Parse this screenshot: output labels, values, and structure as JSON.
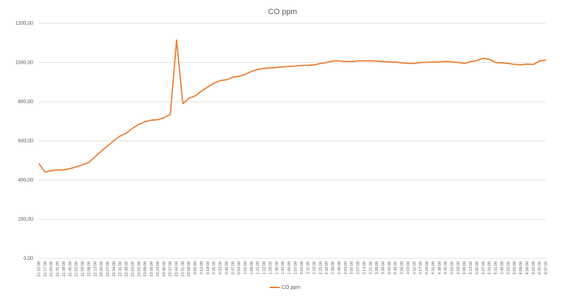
{
  "chart_data": {
    "type": "line",
    "title": "CO ppm",
    "categories": [
      "21:10:00",
      "21:17:00",
      "21:24:00",
      "21:31:00",
      "21:38:00",
      "21:45:00",
      "21:52:00",
      "21:59:00",
      "22:06:00",
      "22:13:00",
      "22:20:00",
      "22:27:00",
      "22:34:00",
      "22:41:00",
      "22:48:00",
      "22:55:00",
      "23:02:00",
      "23:09:00",
      "23:16:00",
      "23:23:00",
      "23:30:00",
      "23:37:00",
      "23:44:00",
      "23:51:00",
      "23:58:00",
      "0:05:00",
      "0:12:00",
      "0:19:00",
      "0:26:00",
      "0:33:00",
      "0:40:00",
      "0:47:00",
      "0:54:00",
      "1:01:00",
      "1:08:00",
      "1:15:00",
      "1:22:00",
      "1:29:00",
      "1:36:00",
      "1:43:00",
      "1:50:00",
      "1:57:00",
      "2:04:00",
      "2:11:00",
      "2:18:00",
      "2:25:00",
      "2:32:00",
      "2:39:00",
      "2:46:00",
      "2:53:00",
      "3:00:00",
      "3:07:00",
      "3:14:00",
      "3:21:00",
      "3:28:00",
      "3:35:00",
      "3:42:00",
      "3:49:00",
      "3:56:00",
      "4:03:00",
      "4:10:00",
      "4:17:00",
      "4:24:00",
      "4:31:00",
      "4:38:00",
      "4:45:00",
      "4:52:00",
      "4:59:00",
      "5:06:00",
      "5:13:00",
      "5:20:00",
      "5:27:00",
      "5:34:00",
      "5:41:00",
      "5:48:00",
      "5:55:00",
      "6:02:00",
      "6:09:00",
      "6:16:00",
      "6:23:00",
      "6:30:00",
      "6:37:00"
    ],
    "series": [
      {
        "name": "CO ppm",
        "color": "#ed7d31",
        "values": [
          485,
          440,
          448,
          452,
          452,
          458,
          468,
          478,
          490,
          520,
          548,
          575,
          602,
          625,
          640,
          665,
          685,
          698,
          706,
          708,
          718,
          735,
          1115,
          790,
          818,
          830,
          855,
          875,
          895,
          908,
          912,
          925,
          930,
          940,
          955,
          965,
          970,
          972,
          975,
          978,
          980,
          982,
          985,
          985,
          988,
          995,
          1000,
          1008,
          1008,
          1005,
          1005,
          1008,
          1008,
          1008,
          1007,
          1005,
          1003,
          1002,
          998,
          996,
          995,
          1000,
          1001,
          1002,
          1003,
          1005,
          1003,
          1000,
          995,
          1005,
          1010,
          1022,
          1015,
          1000,
          998,
          995,
          990,
          988,
          992,
          990,
          1008,
          1012
        ]
      }
    ],
    "ylim": [
      0,
      1200
    ],
    "yticks": [
      {
        "value": 0,
        "label": "0,00"
      },
      {
        "value": 200,
        "label": "200,00"
      },
      {
        "value": 400,
        "label": "400,00"
      },
      {
        "value": 600,
        "label": "600,00"
      },
      {
        "value": 800,
        "label": "800,00"
      },
      {
        "value": 1000,
        "label": "1000,00"
      },
      {
        "value": 1200,
        "label": "1200,00"
      }
    ],
    "grid": true,
    "legend": "bottom"
  }
}
